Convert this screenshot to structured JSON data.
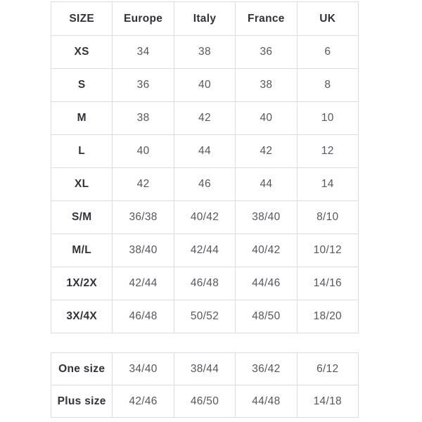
{
  "colors": {
    "background": "#ffffff",
    "border": "#dcdcdc",
    "label_text": "#32323b",
    "value_text": "#56575d"
  },
  "chart_data": [
    {
      "type": "table",
      "columns": [
        "SIZE",
        "Europe",
        "Italy",
        "France",
        "UK"
      ],
      "rows": [
        [
          "XS",
          "34",
          "38",
          "36",
          "6"
        ],
        [
          "S",
          "36",
          "40",
          "38",
          "8"
        ],
        [
          "M",
          "38",
          "42",
          "40",
          "10"
        ],
        [
          "L",
          "40",
          "44",
          "42",
          "12"
        ],
        [
          "XL",
          "42",
          "46",
          "44",
          "14"
        ],
        [
          "S/M",
          "36/38",
          "40/42",
          "38/40",
          "8/10"
        ],
        [
          "M/L",
          "38/40",
          "42/44",
          "40/42",
          "10/12"
        ],
        [
          "1X/2X",
          "42/44",
          "46/48",
          "44/46",
          "14/16"
        ],
        [
          "3X/4X",
          "46/48",
          "50/52",
          "48/50",
          "18/20"
        ]
      ],
      "layout": {
        "header_row": true,
        "grid": true
      }
    },
    {
      "type": "table",
      "columns": [],
      "rows": [
        [
          "One size",
          "34/40",
          "38/44",
          "36/42",
          "6/12"
        ],
        [
          "Plus size",
          "42/46",
          "46/50",
          "44/48",
          "14/18"
        ]
      ],
      "layout": {
        "header_row": false,
        "grid": true
      }
    }
  ]
}
